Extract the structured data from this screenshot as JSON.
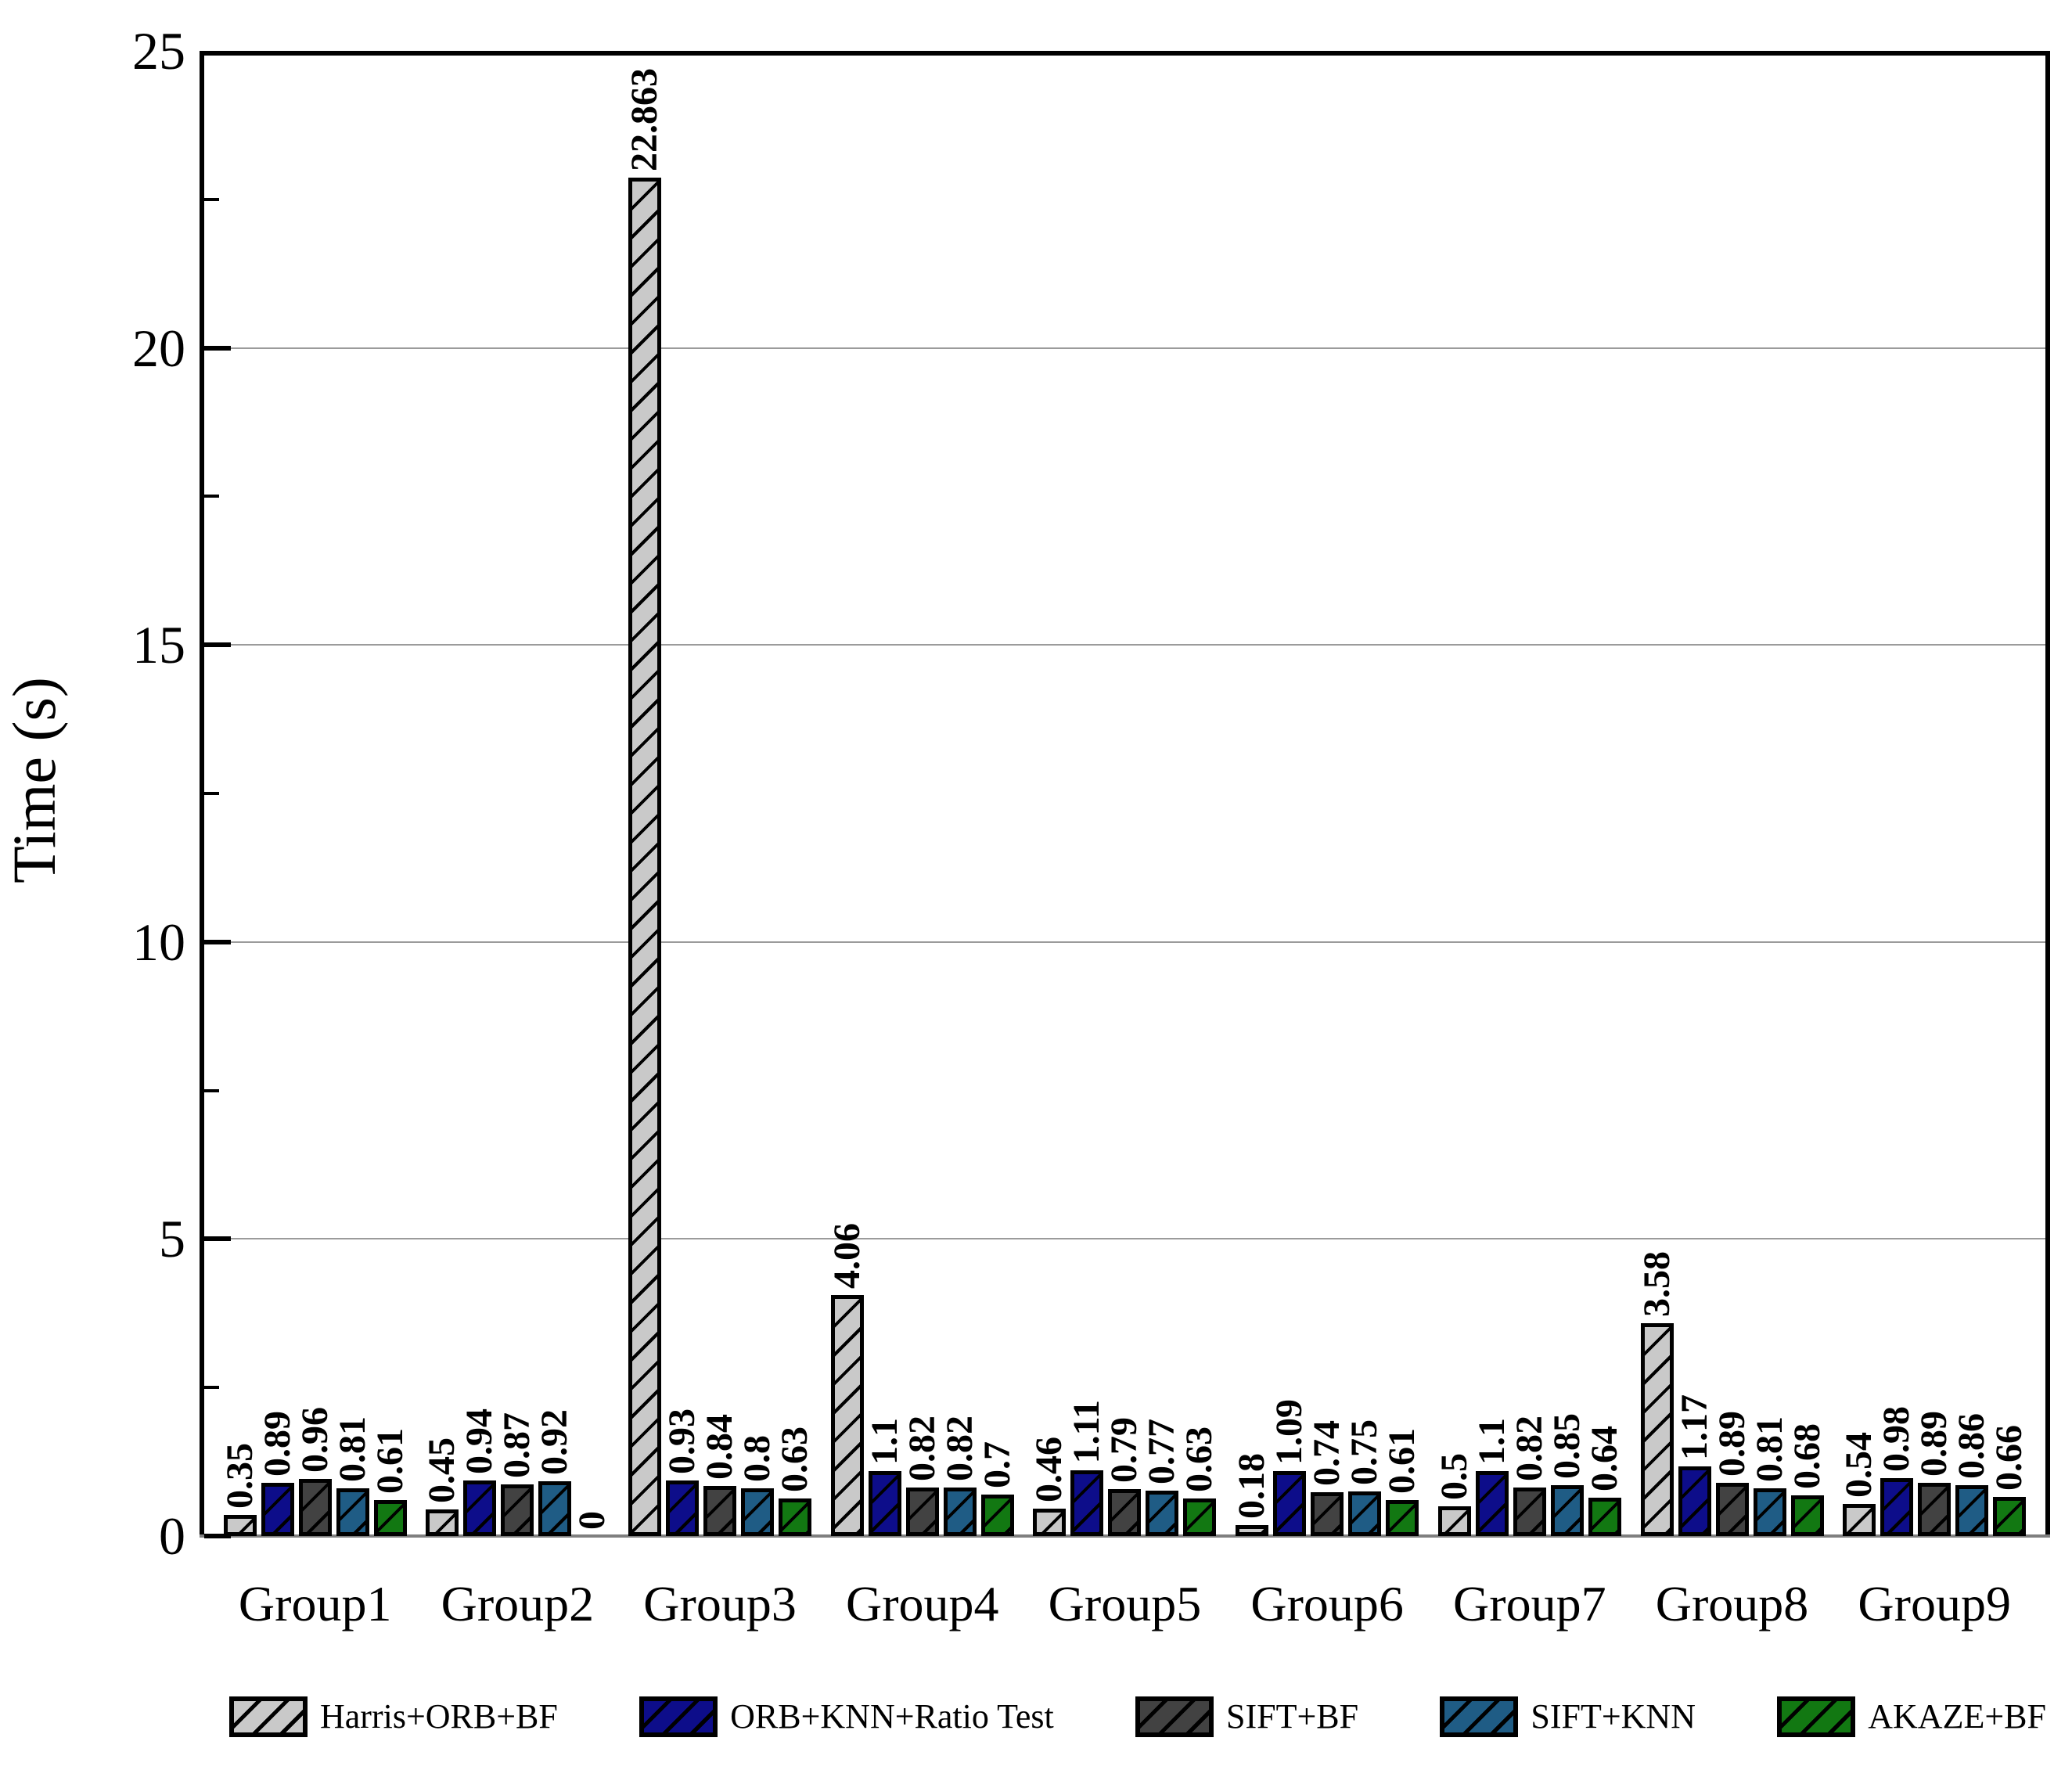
{
  "chart_data": {
    "type": "bar",
    "title": "",
    "xlabel": "",
    "ylabel": "Time (s)",
    "ylim": [
      0,
      25
    ],
    "yticks": [
      0,
      5,
      10,
      15,
      20,
      25
    ],
    "ytick_labels": [
      "0",
      "5",
      "10",
      "15",
      "20",
      "25"
    ],
    "minor_yticks": [
      2.5,
      7.5,
      12.5,
      17.5,
      22.5
    ],
    "grid": "horizontal-major",
    "legend_position": "bottom",
    "hatch": "diagonal-forward",
    "categories": [
      "Group1",
      "Group2",
      "Group3",
      "Group4",
      "Group5",
      "Group6",
      "Group7",
      "Group8",
      "Group9"
    ],
    "series": [
      {
        "name": "Harris+ORB+BF",
        "color": "#c9c9c9",
        "values": [
          0.35,
          0.45,
          22.863,
          4.06,
          0.46,
          0.18,
          0.5,
          3.58,
          0.54
        ],
        "labels": [
          "0.35",
          "0.45",
          "22.863",
          "4.06",
          "0.46",
          "0.18",
          "0.5",
          "3.58",
          "0.54"
        ]
      },
      {
        "name": "ORB+KNN+Ratio Test",
        "color": "#0d0d8a",
        "values": [
          0.89,
          0.94,
          0.93,
          1.1,
          1.11,
          1.09,
          1.1,
          1.17,
          0.98
        ],
        "labels": [
          "0.89",
          "0.94",
          "0.93",
          "1.1",
          "1.11",
          "1.09",
          "1.1",
          "1.17",
          "0.98"
        ]
      },
      {
        "name": "SIFT+BF",
        "color": "#424242",
        "values": [
          0.96,
          0.87,
          0.84,
          0.82,
          0.79,
          0.74,
          0.82,
          0.89,
          0.89
        ],
        "labels": [
          "0.96",
          "0.87",
          "0.84",
          "0.82",
          "0.79",
          "0.74",
          "0.82",
          "0.89",
          "0.89"
        ]
      },
      {
        "name": "SIFT+KNN",
        "color": "#1f5c85",
        "values": [
          0.81,
          0.92,
          0.8,
          0.82,
          0.77,
          0.75,
          0.85,
          0.81,
          0.86
        ],
        "labels": [
          "0.81",
          "0.92",
          "0.8",
          "0.82",
          "0.77",
          "0.75",
          "0.85",
          "0.81",
          "0.86"
        ]
      },
      {
        "name": "AKAZE+BF",
        "color": "#127812",
        "values": [
          0.61,
          0,
          0.63,
          0.7,
          0.63,
          0.61,
          0.64,
          0.68,
          0.66
        ],
        "labels": [
          "0.61",
          "0",
          "0.63",
          "0.7",
          "0.63",
          "0.61",
          "0.64",
          "0.68",
          "0.66"
        ]
      }
    ]
  }
}
